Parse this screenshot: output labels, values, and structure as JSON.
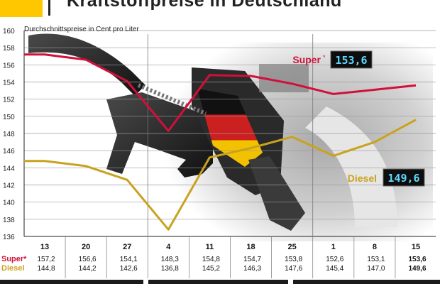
{
  "header": {
    "title": "Kraftstoffpreise in Deutschland"
  },
  "chart_data": {
    "type": "line",
    "subtitle": "Durchschnittspreise in Cent pro Liter",
    "x": [
      "13",
      "20",
      "27",
      "4",
      "11",
      "18",
      "25",
      "1",
      "8",
      "15"
    ],
    "ylim": [
      136,
      160
    ],
    "yticks": [
      136,
      138,
      140,
      142,
      144,
      146,
      148,
      150,
      152,
      154,
      156,
      158,
      160
    ],
    "grid": true,
    "series": [
      {
        "name": "Super",
        "table_label": "Super*",
        "legend_label": "Super",
        "asterisk": "*",
        "color": "#d0103a",
        "display_price": "153,6",
        "values": [
          157.2,
          156.6,
          154.1,
          148.3,
          154.8,
          154.7,
          153.8,
          152.6,
          153.1,
          153.6
        ],
        "labels": [
          "157,2",
          "156,6",
          "154,1",
          "148,3",
          "154,8",
          "154,7",
          "153,8",
          "152,6",
          "153,1",
          "153,6"
        ]
      },
      {
        "name": "Diesel",
        "table_label": "Diesel",
        "legend_label": "Diesel",
        "color": "#c9a21e",
        "display_price": "149,6",
        "values": [
          144.8,
          144.2,
          142.6,
          136.8,
          145.2,
          146.3,
          147.6,
          145.4,
          147.0,
          149.6
        ],
        "labels": [
          "144,8",
          "144,2",
          "142,6",
          "136,8",
          "145,2",
          "146,3",
          "147,6",
          "145,4",
          "147,0",
          "149,6"
        ]
      }
    ]
  }
}
